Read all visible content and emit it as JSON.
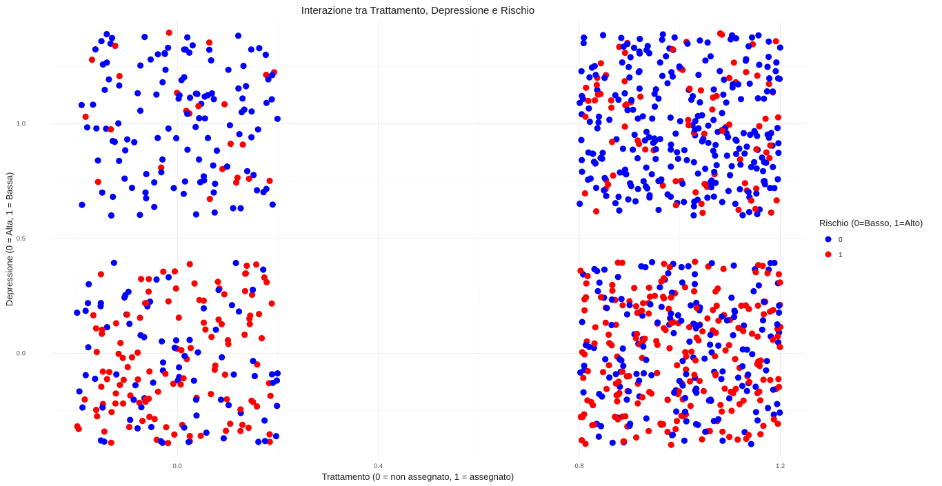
{
  "chart_data": {
    "type": "scatter",
    "title": "Interazione tra Trattamento, Depressione e Rischio",
    "xlabel": "Trattamento (0 = non assegnato, 1 = assegnato)",
    "ylabel": "Depressione (0 = Alta, 1 = Bassa)",
    "xlim": [
      -0.2,
      1.2
    ],
    "ylim": [
      -0.4,
      1.4
    ],
    "x_ticks": [
      0.0,
      0.4,
      0.8,
      1.2
    ],
    "x_tick_labels": [
      "0.0",
      "0.4",
      "0.8",
      "1.2"
    ],
    "y_ticks": [
      0.0,
      0.5,
      1.0
    ],
    "y_tick_labels": [
      "0.0",
      "0.5",
      "1.0"
    ],
    "grid": true,
    "legend": {
      "title": "Rischio (0=Basso, 1=Alto)",
      "position": "right",
      "entries": [
        {
          "label": "0",
          "color": "#0000ff"
        },
        {
          "label": "1",
          "color": "#ff0000"
        }
      ]
    },
    "series": [
      {
        "name": "0",
        "color": "#0000ff",
        "clusters": [
          {
            "x_range": [
              -0.2,
              0.2
            ],
            "y_range": [
              0.6,
              1.4
            ],
            "count": 120
          },
          {
            "x_range": [
              -0.2,
              0.2
            ],
            "y_range": [
              -0.4,
              0.4
            ],
            "count": 80
          },
          {
            "x_range": [
              0.8,
              1.2
            ],
            "y_range": [
              0.6,
              1.4
            ],
            "count": 260
          },
          {
            "x_range": [
              0.8,
              1.2
            ],
            "y_range": [
              -0.4,
              0.4
            ],
            "count": 170
          }
        ]
      },
      {
        "name": "1",
        "color": "#ff0000",
        "clusters": [
          {
            "x_range": [
              -0.2,
              0.2
            ],
            "y_range": [
              0.6,
              1.4
            ],
            "count": 25
          },
          {
            "x_range": [
              -0.2,
              0.2
            ],
            "y_range": [
              -0.4,
              0.4
            ],
            "count": 120
          },
          {
            "x_range": [
              0.8,
              1.2
            ],
            "y_range": [
              0.6,
              1.4
            ],
            "count": 85
          },
          {
            "x_range": [
              0.8,
              1.2
            ],
            "y_range": [
              -0.4,
              0.4
            ],
            "count": 220
          }
        ]
      }
    ]
  }
}
